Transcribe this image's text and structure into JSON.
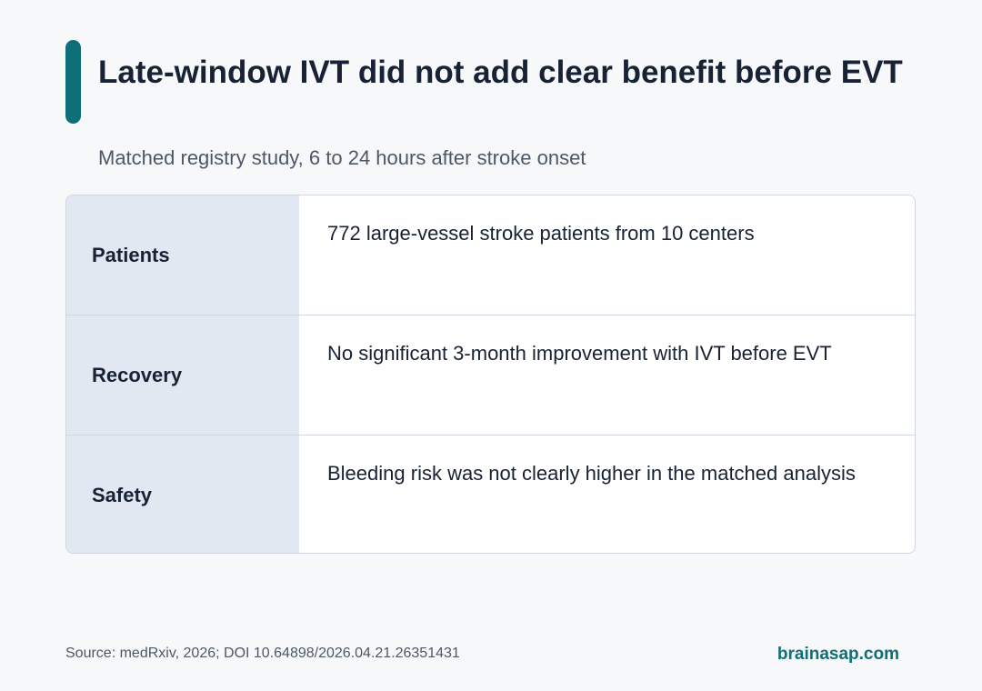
{
  "header": {
    "title": "Late-window IVT did not add clear benefit before EVT",
    "subtitle": "Matched registry study, 6 to 24 hours after stroke onset"
  },
  "table": {
    "rows": [
      {
        "label": "Patients",
        "value": "772 large-vessel stroke patients from 10 centers"
      },
      {
        "label": "Recovery",
        "value": "No significant 3-month improvement with IVT before EVT"
      },
      {
        "label": "Safety",
        "value": "Bleeding risk was not clearly higher in the matched analysis"
      }
    ]
  },
  "footer": {
    "source": "Source: medRxiv, 2026; DOI 10.64898/2026.04.21.26351431",
    "brand": "brainasap.com"
  },
  "colors": {
    "accent": "#0e6f78",
    "label_background": "#e1e8f1",
    "text": "#172235"
  }
}
